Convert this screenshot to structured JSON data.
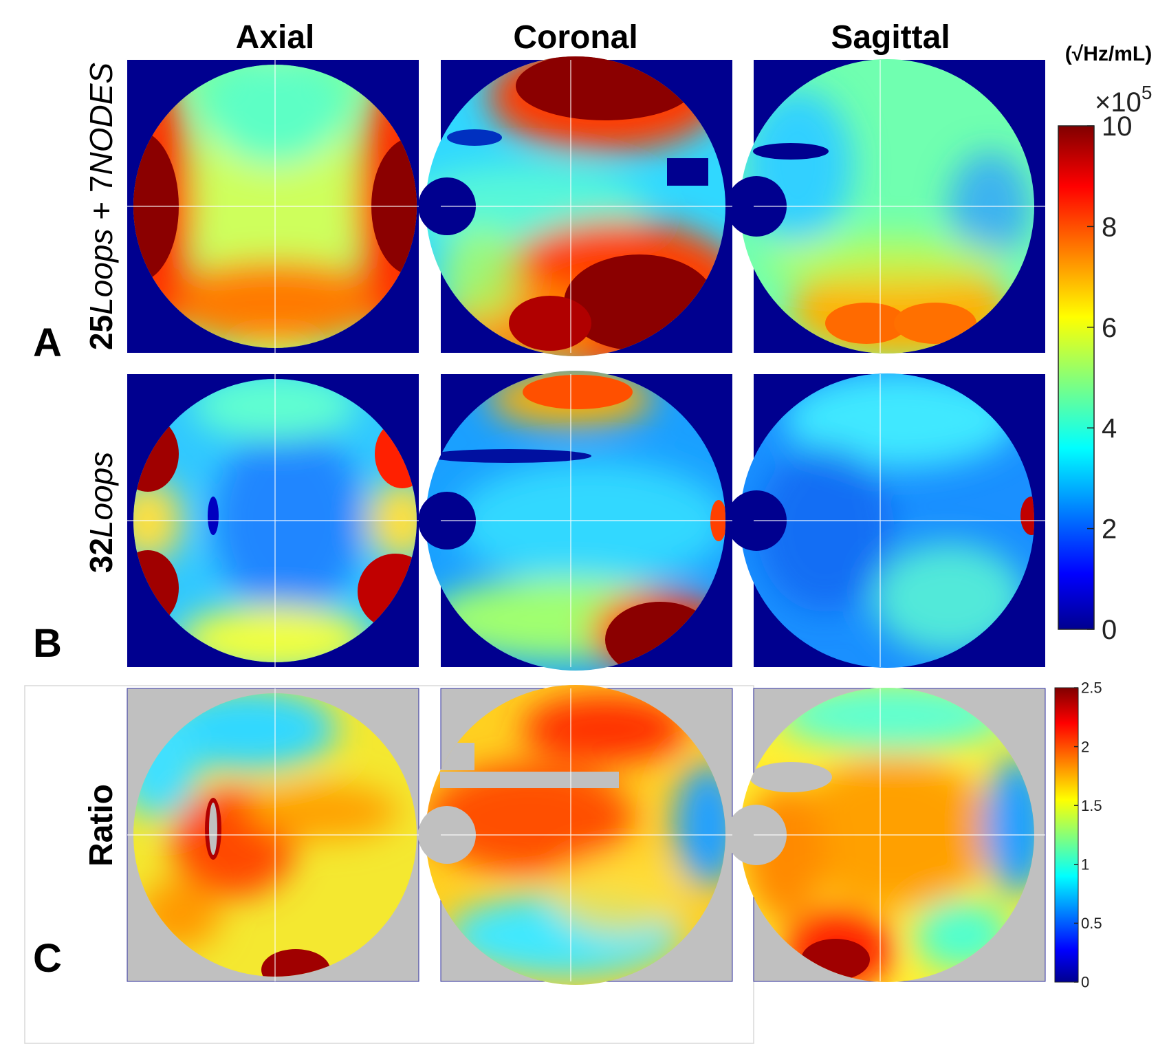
{
  "chart_data": {
    "type": "heatmap",
    "columns": [
      "Axial",
      "Coronal",
      "Sagittal"
    ],
    "rows": [
      {
        "letter": "A",
        "title_upright_1": "25",
        "title_italic_1": "Loops",
        "title_upright_2": " + 7",
        "title_italic_2": "NODES"
      },
      {
        "letter": "B",
        "title_upright_1": "32",
        "title_italic_1": "Loops",
        "title_upright_2": "",
        "title_italic_2": ""
      },
      {
        "letter": "C",
        "title_upright_1": "Ratio",
        "title_italic_1": "",
        "title_upright_2": "",
        "title_italic_2": ""
      }
    ],
    "colorbar_main": {
      "unit": "(√Hz/mL)",
      "multiplier_base": "×10",
      "multiplier_exp": "5",
      "range": [
        0,
        10
      ],
      "ticks": [
        {
          "value": 0,
          "label": "0"
        },
        {
          "value": 2,
          "label": "2"
        },
        {
          "value": 4,
          "label": "4"
        },
        {
          "value": 6,
          "label": "6"
        },
        {
          "value": 8,
          "label": "8"
        },
        {
          "value": 10,
          "label": "10"
        }
      ]
    },
    "colorbar_ratio": {
      "range": [
        0,
        2.5
      ],
      "ticks": [
        {
          "value": 0,
          "label": "0"
        },
        {
          "value": 0.5,
          "label": "0.5"
        },
        {
          "value": 1,
          "label": "1"
        },
        {
          "value": 1.5,
          "label": "1.5"
        },
        {
          "value": 2,
          "label": "2"
        },
        {
          "value": 2.5,
          "label": "2.5"
        }
      ]
    },
    "colormap": "jet",
    "colors": {
      "background_main": "#00008f",
      "background_ratio": "#c0c0c0",
      "crosshair": "#ffffff",
      "jet_stops": [
        "#00008f",
        "#0000ff",
        "#0080ff",
        "#00ffff",
        "#80ff80",
        "#ffff00",
        "#ff8000",
        "#ff0000",
        "#800000"
      ]
    }
  }
}
